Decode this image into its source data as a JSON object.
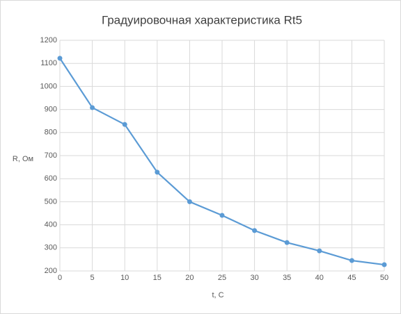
{
  "chart_data": {
    "type": "line",
    "title": "Градуировочная характеристика Rt5",
    "x_label": "t, C",
    "y_label": "R, Ом",
    "x": [
      0,
      5,
      10,
      15,
      20,
      25,
      30,
      35,
      40,
      45,
      50
    ],
    "series": [
      {
        "name": "Rt5",
        "color": "#5b9bd5",
        "values": [
          1122,
          908,
          835,
          628,
          500,
          441,
          375,
          323,
          287,
          245,
          227
        ]
      }
    ],
    "xlim": [
      0,
      50
    ],
    "xticks": [
      0,
      5,
      10,
      15,
      20,
      25,
      30,
      35,
      40,
      45,
      50
    ],
    "ylim": [
      200,
      1200
    ],
    "yticks": [
      200,
      300,
      400,
      500,
      600,
      700,
      800,
      900,
      1000,
      1100,
      1200
    ],
    "grid": true
  }
}
